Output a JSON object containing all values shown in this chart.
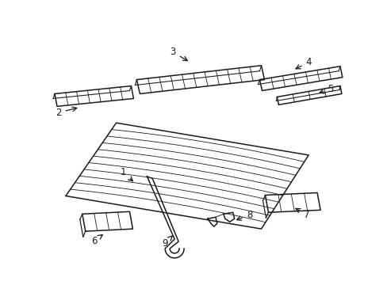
{
  "background_color": "#ffffff",
  "line_color": "#1a1a1a",
  "label_color": "#1a1a1a",
  "lw": 1.1,
  "lw_rib": 0.6
}
